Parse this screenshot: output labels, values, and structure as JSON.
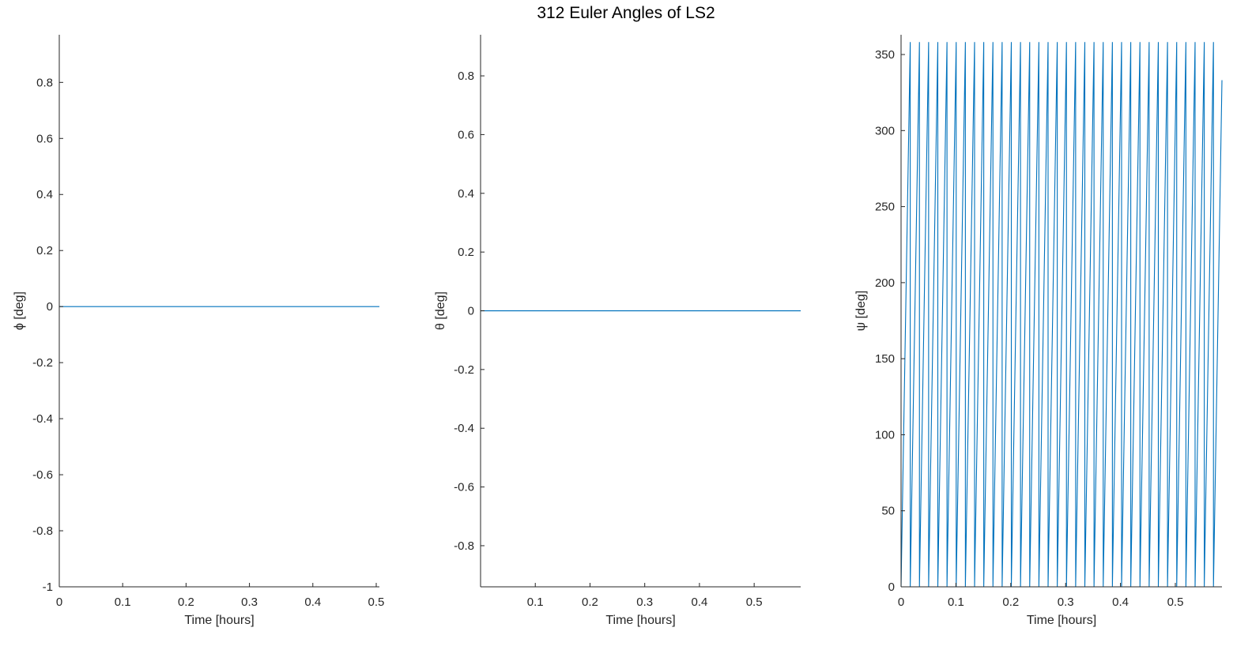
{
  "title": "312 Euler Angles of LS2",
  "colors": {
    "series": "#0072BD",
    "axis": "#262626"
  },
  "chart_data": [
    {
      "type": "line",
      "xlabel": "Time [hours]",
      "ylabel": "ϕ [deg]",
      "xlim": [
        0,
        0.505
      ],
      "ylim": [
        -1,
        0.97
      ],
      "xticks": [
        0,
        0.1,
        0.2,
        0.3,
        0.4,
        0.5
      ],
      "xtick_labels": [
        "0",
        "0.1",
        "0.2",
        "0.3",
        "0.4",
        "0.5"
      ],
      "yticks": [
        -1,
        -0.8,
        -0.6,
        -0.4,
        -0.2,
        0,
        0.2,
        0.4,
        0.6,
        0.8
      ],
      "ytick_labels": [
        "-1",
        "-0.8",
        "-0.6",
        "-0.4",
        "-0.2",
        "0",
        "0.2",
        "0.4",
        "0.6",
        "0.8"
      ],
      "series": [
        {
          "x": [
            0,
            0.505
          ],
          "y": [
            0,
            0
          ]
        }
      ]
    },
    {
      "type": "line",
      "xlabel": "Time [hours]",
      "ylabel": "θ [deg]",
      "xlim": [
        0,
        0.585
      ],
      "ylim": [
        -0.94,
        0.94
      ],
      "xticks": [
        0.1,
        0.2,
        0.3,
        0.4,
        0.5
      ],
      "xtick_labels": [
        "0.1",
        "0.2",
        "0.3",
        "0.4",
        "0.5"
      ],
      "yticks": [
        -0.8,
        -0.6,
        -0.4,
        -0.2,
        0,
        0.2,
        0.4,
        0.6,
        0.8
      ],
      "ytick_labels": [
        "-0.8",
        "-0.6",
        "-0.4",
        "-0.2",
        "0",
        "0.2",
        "0.4",
        "0.6",
        "0.8"
      ],
      "series": [
        {
          "x": [
            0,
            0.585
          ],
          "y": [
            0,
            0
          ]
        }
      ]
    },
    {
      "type": "line",
      "xlabel": "Time [hours]",
      "ylabel": "ψ [deg]",
      "xlim": [
        0,
        0.585
      ],
      "ylim": [
        0,
        363
      ],
      "xticks": [
        0,
        0.1,
        0.2,
        0.3,
        0.4,
        0.5
      ],
      "xtick_labels": [
        "0",
        "0.1",
        "0.2",
        "0.3",
        "0.4",
        "0.5"
      ],
      "yticks": [
        0,
        50,
        100,
        150,
        200,
        250,
        300,
        350
      ],
      "ytick_labels": [
        "0",
        "50",
        "100",
        "150",
        "200",
        "250",
        "300",
        "350"
      ],
      "sawtooth": {
        "period_hours": 0.01675,
        "max_deg": 360,
        "t_end": 0.585
      }
    }
  ]
}
